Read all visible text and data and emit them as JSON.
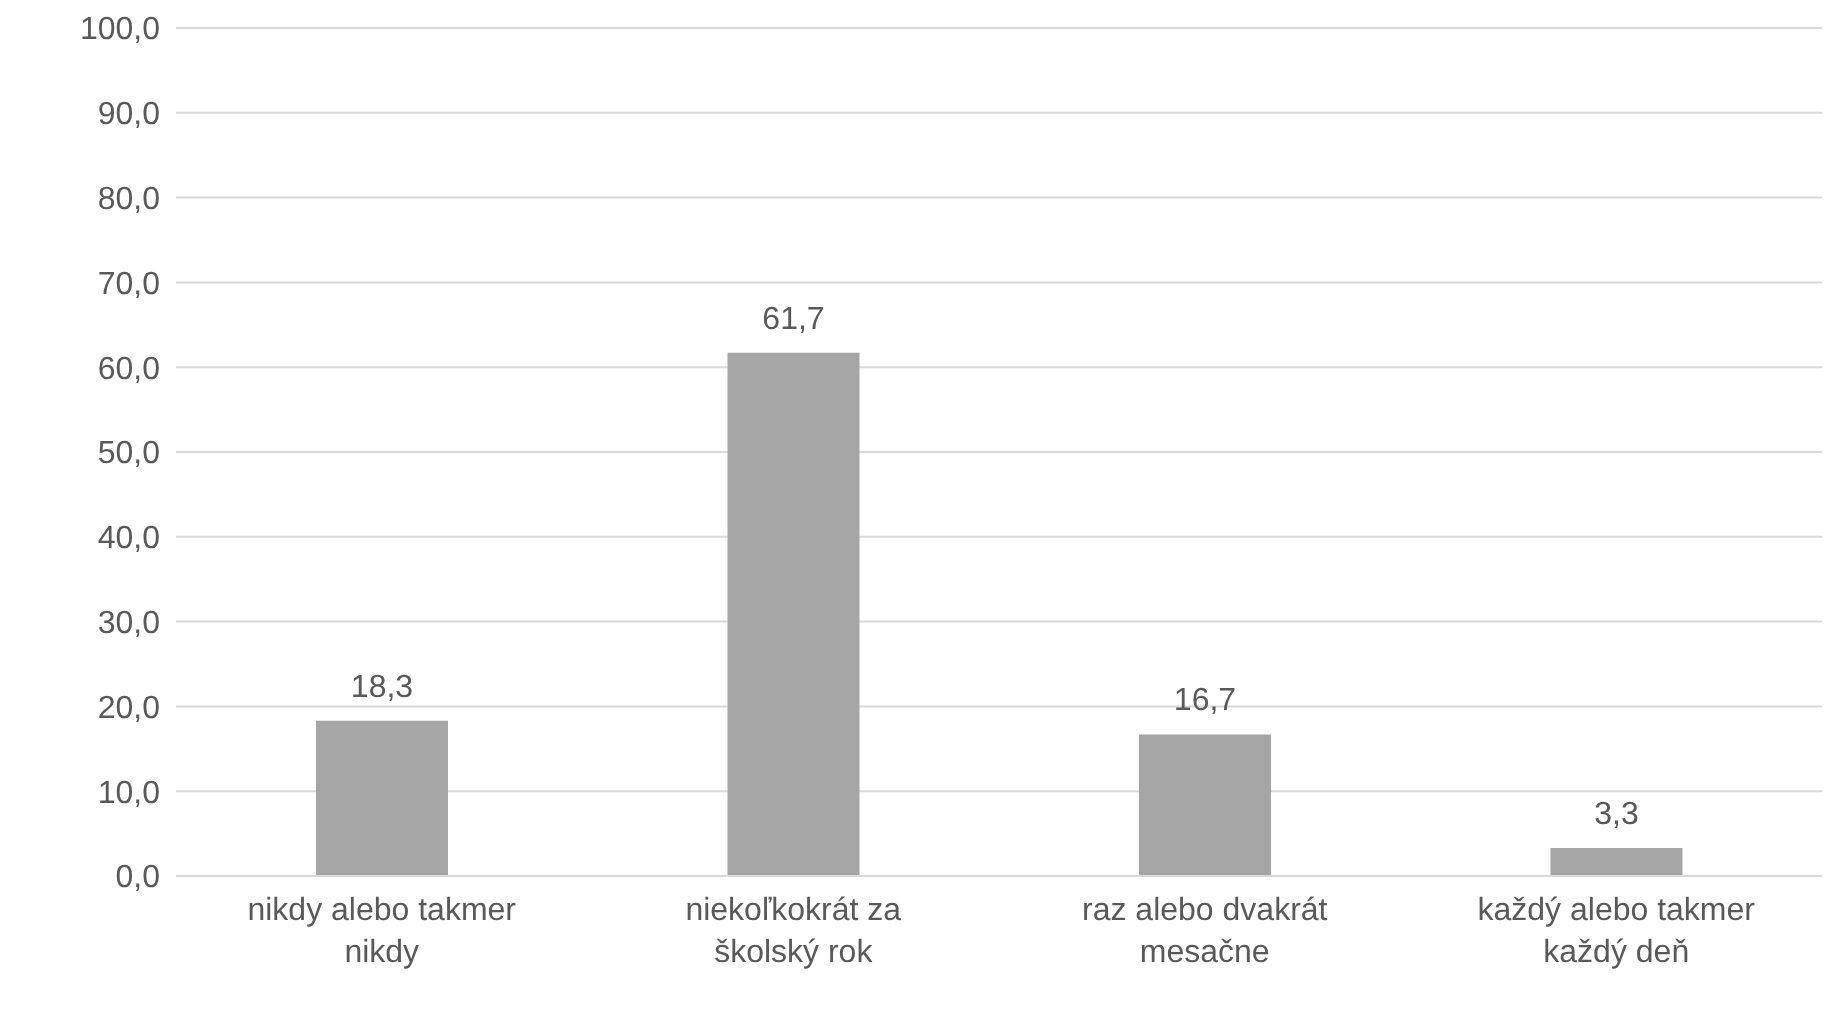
{
  "chart_data": {
    "type": "bar",
    "categories": [
      "nikdy alebo takmer nikdy",
      "niekoľkokrát za školský rok",
      "raz alebo dvakrát mesačne",
      "každý alebo takmer každý deň"
    ],
    "values": [
      18.3,
      61.7,
      16.7,
      3.3
    ],
    "value_labels": [
      "18,3",
      "61,7",
      "16,7",
      "3,3"
    ],
    "color": "#a5a5a5",
    "ylim": [
      0,
      100
    ],
    "yticks": [
      {
        "value": 0,
        "label": "0,0"
      },
      {
        "value": 10,
        "label": "10,0"
      },
      {
        "value": 20,
        "label": "20,0"
      },
      {
        "value": 30,
        "label": "30,0"
      },
      {
        "value": 40,
        "label": "40,0"
      },
      {
        "value": 50,
        "label": "50,0"
      },
      {
        "value": 60,
        "label": "60,0"
      },
      {
        "value": 70,
        "label": "70,0"
      },
      {
        "value": 80,
        "label": "80,0"
      },
      {
        "value": 90,
        "label": "90,0"
      },
      {
        "value": 100,
        "label": "100,0"
      }
    ],
    "grid": "y",
    "legend": false
  }
}
